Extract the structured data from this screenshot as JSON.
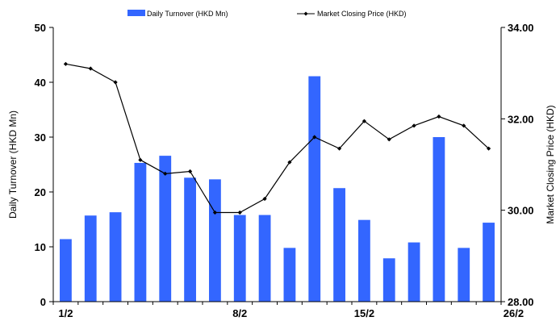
{
  "chart_data": {
    "type": "bar",
    "legend": {
      "placement": "top-center",
      "items": [
        "Daily Turnover (HKD Mn)",
        "Market Closing Price (HKD)"
      ]
    },
    "x_tick_labels": [
      {
        "index": 0,
        "label": "1/2"
      },
      {
        "index": 7,
        "label": "8/2"
      },
      {
        "index": 12,
        "label": "15/2"
      },
      {
        "index": 18,
        "label": "26/2"
      }
    ],
    "ylabel_left": "Daily Turnover (HKD Mn)",
    "ylabel_right": "Market Closing Price (HKD)",
    "ylim_left": [
      0,
      50
    ],
    "ylim_right": [
      28,
      34
    ],
    "yticks_left": [
      "0",
      "10",
      "20",
      "30",
      "40",
      "50"
    ],
    "yticks_right": [
      "28.00",
      "30.00",
      "32.00",
      "34.00"
    ],
    "grid": false,
    "series": [
      {
        "name": "Daily Turnover (HKD Mn)",
        "type": "bar",
        "axis": "left",
        "color": "#3366ff",
        "values": [
          11.4,
          15.7,
          16.3,
          25.3,
          26.6,
          22.6,
          22.3,
          15.8,
          15.8,
          9.8,
          41.1,
          20.7,
          14.9,
          7.9,
          10.8,
          30.0,
          9.8,
          14.4
        ]
      },
      {
        "name": "Market Closing Price (HKD)",
        "type": "line",
        "axis": "right",
        "color": "#000000",
        "values": [
          33.2,
          33.1,
          32.8,
          31.1,
          30.8,
          30.85,
          29.95,
          29.95,
          30.25,
          31.05,
          31.6,
          31.35,
          31.95,
          31.55,
          31.85,
          32.05,
          31.85,
          31.35
        ]
      }
    ]
  }
}
